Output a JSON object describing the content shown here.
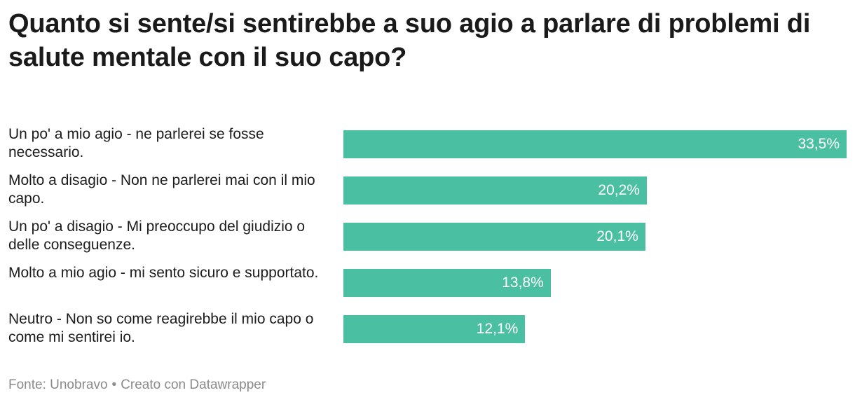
{
  "chart_data": {
    "type": "bar",
    "orientation": "horizontal",
    "title": "Quanto si sente/si sentirebbe a suo agio a parlare di problemi di salute mentale con il suo capo?",
    "categories": [
      "Un po' a mio agio - ne parlerei se fosse necessario.",
      "Molto a disagio - Non ne parlerei mai con il mio capo.",
      "Un po' a disagio - Mi preoccupo del giudizio o delle conseguenze.",
      "Molto a mio agio - mi sento sicuro e supportato.",
      "Neutro - Non so come reagirebbe il mio capo o come mi sentirei io."
    ],
    "values": [
      33.5,
      20.2,
      20.1,
      13.8,
      12.1
    ],
    "value_labels": [
      "33,5%",
      "20,2%",
      "20,1%",
      "13,8%",
      "12,1%"
    ],
    "unit": "%",
    "xlim": [
      0,
      33.5
    ],
    "xlabel": "",
    "ylabel": "",
    "grid": false,
    "legend": "none",
    "bar_color": "#4bbfa1"
  },
  "footer": {
    "source": "Fonte: Unobravo",
    "separator": "•",
    "credit": "Creato con Datawrapper"
  }
}
